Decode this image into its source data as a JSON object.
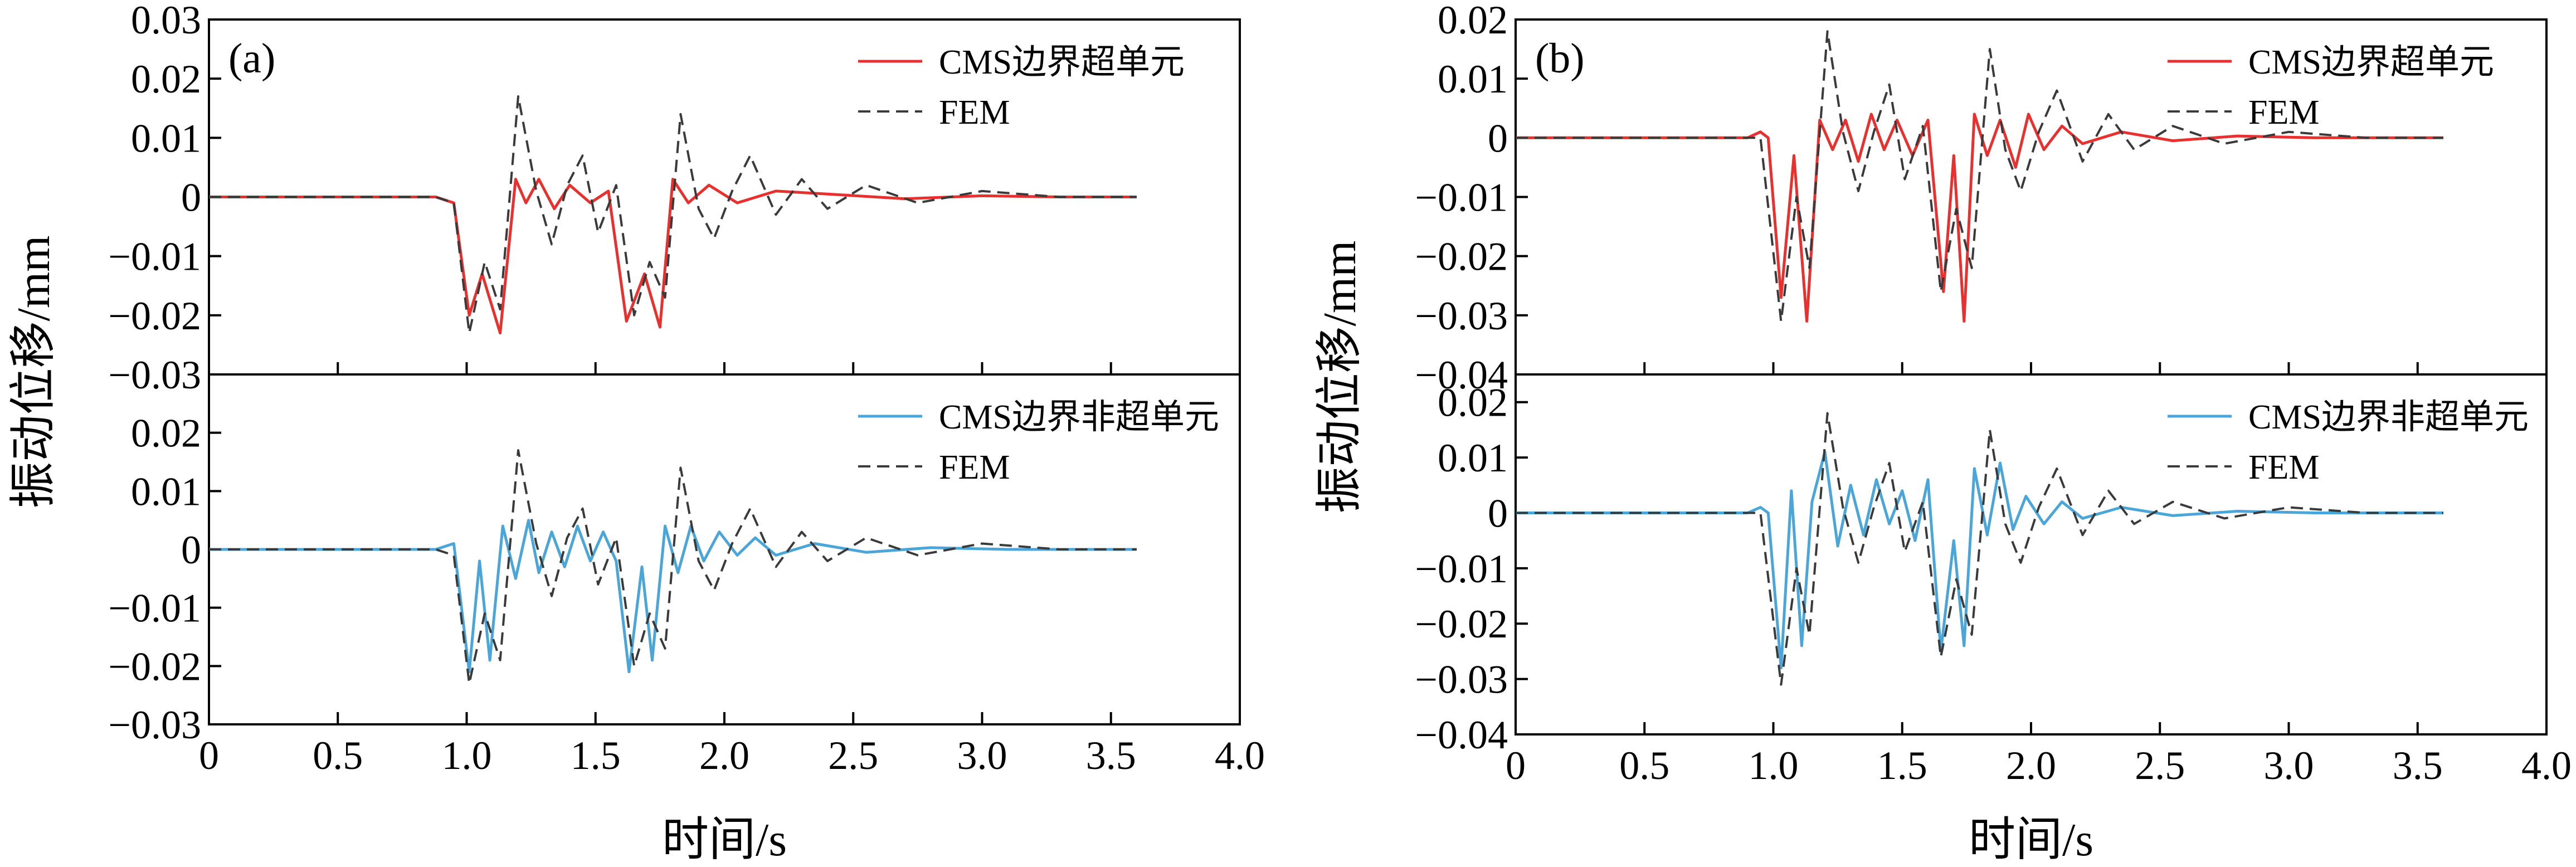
{
  "colors": {
    "cms_super": "#e8302e",
    "cms_non_super": "#4aa5d8",
    "fem": "#3a3a3a",
    "axis": "#000000"
  },
  "chart_data": [
    {
      "panel": "(a)",
      "type": "line",
      "xlabel": "时间/s",
      "ylabel": "振动位移/mm",
      "xlim": [
        0,
        4.0
      ],
      "x_ticks": [
        "0",
        "0.5",
        "1.0",
        "1.5",
        "2.0",
        "2.5",
        "3.0",
        "3.5",
        "4.0"
      ],
      "subplots": [
        {
          "position": "top",
          "ylim": [
            -0.03,
            0.03
          ],
          "y_ticks": [
            "0.03",
            "0.02",
            "0.01",
            "0",
            "−0.01",
            "−0.02",
            "−0.03"
          ],
          "legend": [
            "CMS边界超单元",
            "FEM"
          ],
          "series": [
            {
              "name": "CMS边界超单元",
              "style": "solid",
              "color_key": "cms_super",
              "x": [
                0,
                0.88,
                0.95,
                1.01,
                1.06,
                1.13,
                1.19,
                1.23,
                1.28,
                1.34,
                1.4,
                1.48,
                1.55,
                1.62,
                1.69,
                1.75,
                1.8,
                1.86,
                1.94,
                2.05,
                2.2,
                2.4,
                2.7,
                3.0,
                3.3,
                3.6
              ],
              "y": [
                0,
                0,
                -0.001,
                -0.02,
                -0.013,
                -0.023,
                0.003,
                -0.001,
                0.003,
                -0.002,
                0.002,
                -0.001,
                0.001,
                -0.021,
                -0.013,
                -0.022,
                0.003,
                -0.001,
                0.002,
                -0.001,
                0.001,
                0.0005,
                -0.0003,
                0.0002,
                0,
                0
              ]
            },
            {
              "name": "FEM",
              "style": "dashed",
              "color_key": "fem",
              "x": [
                0,
                0.88,
                0.95,
                1.01,
                1.07,
                1.13,
                1.2,
                1.27,
                1.33,
                1.39,
                1.45,
                1.51,
                1.58,
                1.65,
                1.71,
                1.77,
                1.83,
                1.9,
                1.96,
                2.03,
                2.1,
                2.2,
                2.3,
                2.4,
                2.55,
                2.75,
                3.0,
                3.3,
                3.6
              ],
              "y": [
                0,
                0,
                -0.001,
                -0.023,
                -0.011,
                -0.019,
                0.017,
                0.001,
                -0.008,
                0.002,
                0.007,
                -0.006,
                0.002,
                -0.02,
                -0.011,
                -0.017,
                0.014,
                -0.002,
                -0.007,
                0.001,
                0.007,
                -0.003,
                0.003,
                -0.002,
                0.002,
                -0.001,
                0.001,
                0,
                0
              ]
            }
          ]
        },
        {
          "position": "bottom",
          "ylim": [
            -0.03,
            0.03
          ],
          "y_ticks": [
            "0.02",
            "0.01",
            "0",
            "−0.01",
            "−0.02",
            "−0.03"
          ],
          "legend": [
            "CMS边界非超单元",
            "FEM"
          ],
          "series": [
            {
              "name": "CMS边界非超单元",
              "style": "solid",
              "color_key": "cms_non_super",
              "x": [
                0,
                0.88,
                0.95,
                1.01,
                1.05,
                1.09,
                1.14,
                1.19,
                1.24,
                1.28,
                1.33,
                1.38,
                1.43,
                1.48,
                1.53,
                1.58,
                1.63,
                1.68,
                1.72,
                1.77,
                1.82,
                1.87,
                1.92,
                1.98,
                2.05,
                2.12,
                2.2,
                2.35,
                2.55,
                2.8,
                3.1,
                3.6
              ],
              "y": [
                0,
                0,
                0.001,
                -0.021,
                -0.002,
                -0.019,
                0.004,
                -0.005,
                0.005,
                -0.004,
                0.003,
                -0.003,
                0.004,
                -0.002,
                0.003,
                -0.002,
                -0.021,
                -0.003,
                -0.019,
                0.004,
                -0.004,
                0.004,
                -0.002,
                0.003,
                -0.001,
                0.002,
                -0.001,
                0.001,
                -0.0005,
                0.0003,
                0,
                0
              ]
            },
            {
              "name": "FEM",
              "style": "dashed",
              "color_key": "fem",
              "x": [
                0,
                0.88,
                0.95,
                1.01,
                1.07,
                1.13,
                1.2,
                1.27,
                1.33,
                1.39,
                1.45,
                1.51,
                1.58,
                1.65,
                1.71,
                1.77,
                1.83,
                1.9,
                1.96,
                2.03,
                2.1,
                2.2,
                2.3,
                2.4,
                2.55,
                2.75,
                3.0,
                3.3,
                3.6
              ],
              "y": [
                0,
                0,
                -0.001,
                -0.023,
                -0.011,
                -0.019,
                0.017,
                0.001,
                -0.008,
                0.002,
                0.007,
                -0.006,
                0.002,
                -0.02,
                -0.011,
                -0.017,
                0.014,
                -0.002,
                -0.007,
                0.001,
                0.007,
                -0.003,
                0.003,
                -0.002,
                0.002,
                -0.001,
                0.001,
                0,
                0
              ]
            }
          ]
        }
      ]
    },
    {
      "panel": "(b)",
      "type": "line",
      "xlabel": "时间/s",
      "ylabel": "振动位移/mm",
      "xlim": [
        0,
        4.0
      ],
      "x_ticks": [
        "0",
        "0.5",
        "1.0",
        "1.5",
        "2.0",
        "2.5",
        "3.0",
        "3.5",
        "4.0"
      ],
      "subplots": [
        {
          "position": "top",
          "ylim": [
            -0.04,
            0.02
          ],
          "y_ticks": [
            "0.02",
            "0.01",
            "0",
            "−0.01",
            "−0.02",
            "−0.03",
            "−0.04"
          ],
          "legend": [
            "CMS边界超单元",
            "FEM"
          ],
          "series": [
            {
              "name": "CMS边界超单元",
              "style": "solid",
              "color_key": "cms_super",
              "x": [
                0,
                0.9,
                0.95,
                0.98,
                1.03,
                1.08,
                1.13,
                1.18,
                1.23,
                1.28,
                1.33,
                1.38,
                1.43,
                1.48,
                1.54,
                1.6,
                1.66,
                1.7,
                1.74,
                1.78,
                1.83,
                1.88,
                1.94,
                1.99,
                2.05,
                2.12,
                2.2,
                2.35,
                2.55,
                2.8,
                3.1,
                3.6
              ],
              "y": [
                0,
                0,
                0.001,
                0,
                -0.027,
                -0.003,
                -0.031,
                0.003,
                -0.002,
                0.003,
                -0.004,
                0.004,
                -0.002,
                0.003,
                -0.003,
                0.003,
                -0.026,
                -0.003,
                -0.031,
                0.004,
                -0.003,
                0.003,
                -0.005,
                0.004,
                -0.002,
                0.002,
                -0.001,
                0.001,
                -0.0005,
                0.0003,
                0,
                0
              ]
            },
            {
              "name": "FEM",
              "style": "dashed",
              "color_key": "fem",
              "x": [
                0,
                0.9,
                0.95,
                1.03,
                1.09,
                1.14,
                1.21,
                1.27,
                1.33,
                1.39,
                1.45,
                1.51,
                1.58,
                1.65,
                1.71,
                1.77,
                1.84,
                1.9,
                1.96,
                2.03,
                2.1,
                2.2,
                2.3,
                2.4,
                2.55,
                2.75,
                3.0,
                3.3,
                3.6
              ],
              "y": [
                0,
                0,
                0,
                -0.031,
                -0.01,
                -0.022,
                0.018,
                0.001,
                -0.009,
                0.001,
                0.009,
                -0.007,
                0.002,
                -0.026,
                -0.012,
                -0.022,
                0.015,
                -0.002,
                -0.009,
                0.001,
                0.008,
                -0.004,
                0.004,
                -0.002,
                0.002,
                -0.001,
                0.001,
                0,
                0
              ]
            }
          ]
        },
        {
          "position": "bottom",
          "ylim": [
            -0.04,
            0.025
          ],
          "y_ticks": [
            "0.02",
            "0.01",
            "0",
            "−0.01",
            "−0.02",
            "−0.03",
            "−0.04"
          ],
          "legend": [
            "CMS边界非超单元",
            "FEM"
          ],
          "series": [
            {
              "name": "CMS边界非超单元",
              "style": "solid",
              "color_key": "cms_non_super",
              "x": [
                0,
                0.9,
                0.95,
                0.98,
                1.03,
                1.07,
                1.11,
                1.15,
                1.2,
                1.25,
                1.3,
                1.35,
                1.4,
                1.45,
                1.5,
                1.55,
                1.6,
                1.65,
                1.7,
                1.74,
                1.78,
                1.83,
                1.88,
                1.93,
                1.98,
                2.05,
                2.12,
                2.2,
                2.35,
                2.55,
                2.8,
                3.1,
                3.6
              ],
              "y": [
                0,
                0,
                0.001,
                0,
                -0.028,
                0.004,
                -0.024,
                0.002,
                0.011,
                -0.006,
                0.005,
                -0.004,
                0.006,
                -0.002,
                0.004,
                -0.005,
                0.006,
                -0.025,
                -0.005,
                -0.024,
                0.008,
                -0.004,
                0.009,
                -0.003,
                0.003,
                -0.002,
                0.002,
                -0.001,
                0.001,
                -0.0005,
                0.0003,
                0,
                0
              ]
            },
            {
              "name": "FEM",
              "style": "dashed",
              "color_key": "fem",
              "x": [
                0,
                0.9,
                0.95,
                1.03,
                1.09,
                1.14,
                1.21,
                1.27,
                1.33,
                1.39,
                1.45,
                1.51,
                1.58,
                1.65,
                1.71,
                1.77,
                1.84,
                1.9,
                1.96,
                2.03,
                2.1,
                2.2,
                2.3,
                2.4,
                2.55,
                2.75,
                3.0,
                3.3,
                3.6
              ],
              "y": [
                0,
                0,
                0,
                -0.031,
                -0.01,
                -0.022,
                0.018,
                0.001,
                -0.009,
                0.001,
                0.009,
                -0.007,
                0.002,
                -0.026,
                -0.012,
                -0.022,
                0.015,
                -0.002,
                -0.009,
                0.001,
                0.008,
                -0.004,
                0.004,
                -0.002,
                0.002,
                -0.001,
                0.001,
                0,
                0
              ]
            }
          ]
        }
      ]
    }
  ]
}
